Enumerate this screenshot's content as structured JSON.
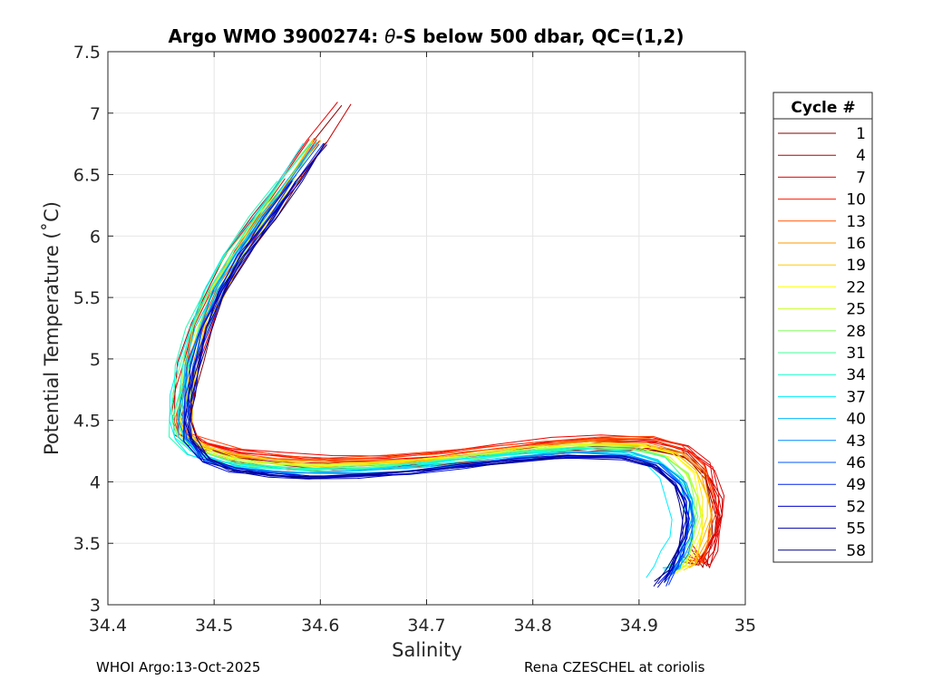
{
  "chart_data": {
    "type": "line",
    "title_prefix": "Argo WMO 3900274: ",
    "title_theta": "θ",
    "title_suffix": "-S below 500 dbar,  QC=(1,2)",
    "xlabel": "Salinity",
    "ylabel": "Potential Temperature (˚C)",
    "xlim": [
      34.4,
      35.0
    ],
    "ylim": [
      3.0,
      7.5
    ],
    "xticks": [
      34.4,
      34.5,
      34.6,
      34.7,
      34.8,
      34.9,
      35.0
    ],
    "xtick_labels": [
      "34.4",
      "34.5",
      "34.6",
      "34.7",
      "34.8",
      "34.9",
      "35"
    ],
    "yticks": [
      3.0,
      3.5,
      4.0,
      4.5,
      5.0,
      5.5,
      6.0,
      6.5,
      7.0,
      7.5
    ],
    "ytick_labels": [
      "3",
      "3.5",
      "4",
      "4.5",
      "5",
      "5.5",
      "6",
      "6.5",
      "7",
      "7.5"
    ],
    "grid": true,
    "legend_title": "Cycle #",
    "legend_position": "right, outside",
    "legend": [
      {
        "label": "1",
        "color": "#800000"
      },
      {
        "label": "4",
        "color": "#b40000"
      },
      {
        "label": "7",
        "color": "#e60000"
      },
      {
        "label": "10",
        "color": "#ff1a00"
      },
      {
        "label": "13",
        "color": "#ff5500"
      },
      {
        "label": "16",
        "color": "#ff9900"
      },
      {
        "label": "19",
        "color": "#ffcc00"
      },
      {
        "label": "22",
        "color": "#ffff00"
      },
      {
        "label": "25",
        "color": "#ccff33"
      },
      {
        "label": "28",
        "color": "#88ff66"
      },
      {
        "label": "31",
        "color": "#44ff99"
      },
      {
        "label": "34",
        "color": "#11ffcc"
      },
      {
        "label": "37",
        "color": "#00eeff"
      },
      {
        "label": "40",
        "color": "#00bbff"
      },
      {
        "label": "43",
        "color": "#0088ff"
      },
      {
        "label": "46",
        "color": "#0055ff"
      },
      {
        "label": "49",
        "color": "#0022ee"
      },
      {
        "label": "52",
        "color": "#0000cc"
      },
      {
        "label": "55",
        "color": "#0000aa"
      },
      {
        "label": "58",
        "color": "#000088"
      }
    ],
    "base_profile": {
      "salinity": [
        34.625,
        34.6,
        34.575,
        34.55,
        34.525,
        34.505,
        34.49,
        34.48,
        34.475,
        34.472,
        34.475,
        34.49,
        34.52,
        34.56,
        34.6,
        34.65,
        34.7,
        34.75,
        34.8,
        34.85,
        34.9,
        34.93,
        34.95,
        34.958,
        34.96,
        34.957,
        34.952,
        34.946
      ],
      "theta": [
        7.05,
        6.75,
        6.45,
        6.15,
        5.85,
        5.55,
        5.25,
        4.95,
        4.7,
        4.5,
        4.35,
        4.2,
        4.12,
        4.08,
        4.06,
        4.07,
        4.1,
        4.15,
        4.2,
        4.23,
        4.22,
        4.15,
        4.0,
        3.85,
        3.7,
        3.55,
        3.42,
        3.3
      ]
    },
    "profiles": [
      {
        "cycle": 1,
        "color": "#800000",
        "ds": 0.008,
        "dt": 0.05,
        "ds_lower": 0.01,
        "t_end": 3.4
      },
      {
        "cycle": 2,
        "color": "#8c0000",
        "ds": -0.004,
        "dt": 0.07,
        "ds_lower": 0.012,
        "t_end": 3.35
      },
      {
        "cycle": 3,
        "color": "#990000",
        "ds": 0.002,
        "dt": 0.03,
        "ds_lower": 0.014,
        "t_end": 3.45
      },
      {
        "cycle": 4,
        "color": "#b40000",
        "ds": -0.012,
        "dt": 0.09,
        "ds_lower": 0.016,
        "t_end": 3.38
      },
      {
        "cycle": 5,
        "color": "#c80000",
        "ds": 0.004,
        "dt": 0.04,
        "ds_lower": 0.018,
        "t_end": 3.42
      },
      {
        "cycle": 6,
        "color": "#d70000",
        "ds": -0.006,
        "dt": 0.1,
        "ds_lower": 0.02,
        "t_end": 3.36
      },
      {
        "cycle": 7,
        "color": "#e60000",
        "ds": 0.0,
        "dt": 0.12,
        "ds_lower": 0.017,
        "t_end": 3.5
      },
      {
        "cycle": 8,
        "color": "#f00000",
        "ds": -0.01,
        "dt": 0.15,
        "ds_lower": 0.015,
        "t_end": 3.4
      },
      {
        "cycle": 9,
        "color": "#ff0000",
        "ds": 0.006,
        "dt": 0.11,
        "ds_lower": 0.013,
        "t_end": 3.37
      },
      {
        "cycle": 10,
        "color": "#ff1a00",
        "ds": -0.003,
        "dt": 0.13,
        "ds_lower": 0.014,
        "t_end": 3.44
      },
      {
        "cycle": 12,
        "color": "#ff3c00",
        "ds": 0.003,
        "dt": 0.14,
        "ds_lower": 0.012,
        "t_end": 3.39
      },
      {
        "cycle": 13,
        "color": "#ff5500",
        "ds": -0.007,
        "dt": 0.12,
        "ds_lower": 0.01,
        "t_end": 3.43
      },
      {
        "cycle": 15,
        "color": "#ff7700",
        "ds": 0.001,
        "dt": 0.1,
        "ds_lower": 0.009,
        "t_end": 3.35
      },
      {
        "cycle": 16,
        "color": "#ff9900",
        "ds": -0.005,
        "dt": 0.09,
        "ds_lower": 0.008,
        "t_end": 3.4
      },
      {
        "cycle": 18,
        "color": "#ffb400",
        "ds": 0.005,
        "dt": 0.08,
        "ds_lower": 0.006,
        "t_end": 3.3
      },
      {
        "cycle": 19,
        "color": "#ffcc00",
        "ds": -0.002,
        "dt": 0.09,
        "ds_lower": 0.004,
        "t_end": 3.28
      },
      {
        "cycle": 21,
        "color": "#ffe600",
        "ds": 0.003,
        "dt": 0.07,
        "ds_lower": 0.002,
        "t_end": 3.32
      },
      {
        "cycle": 22,
        "color": "#ffff00",
        "ds": -0.004,
        "dt": 0.08,
        "ds_lower": 0.0,
        "t_end": 3.25
      },
      {
        "cycle": 24,
        "color": "#e6ff1a",
        "ds": 0.002,
        "dt": 0.06,
        "ds_lower": -0.002,
        "t_end": 3.3
      },
      {
        "cycle": 25,
        "color": "#ccff33",
        "ds": -0.006,
        "dt": 0.07,
        "ds_lower": -0.004,
        "t_end": 3.27
      },
      {
        "cycle": 27,
        "color": "#aaff4d",
        "ds": 0.001,
        "dt": 0.06,
        "ds_lower": -0.005,
        "t_end": 3.3
      },
      {
        "cycle": 28,
        "color": "#88ff66",
        "ds": -0.008,
        "dt": 0.05,
        "ds_lower": -0.006,
        "t_end": 3.33
      },
      {
        "cycle": 30,
        "color": "#66ff80",
        "ds": -0.012,
        "dt": 0.04,
        "ds_lower": -0.008,
        "t_end": 3.28
      },
      {
        "cycle": 31,
        "color": "#44ff99",
        "ds": -0.003,
        "dt": 0.05,
        "ds_lower": -0.007,
        "t_end": 3.31
      },
      {
        "cycle": 33,
        "color": "#22ffb3",
        "ds": -0.015,
        "dt": 0.03,
        "ds_lower": -0.01,
        "t_end": 3.26
      },
      {
        "cycle": 34,
        "color": "#11ffcc",
        "ds": -0.01,
        "dt": 0.04,
        "ds_lower": -0.012,
        "t_end": 3.3
      },
      {
        "cycle": 36,
        "color": "#00ffe6",
        "ds": -0.005,
        "dt": 0.03,
        "ds_lower": -0.014,
        "t_end": 3.28
      },
      {
        "cycle": 37,
        "color": "#00eeff",
        "ds": -0.014,
        "dt": 0.02,
        "ds_lower": -0.03,
        "t_end": 3.22
      },
      {
        "cycle": 39,
        "color": "#00d4ff",
        "ds": -0.002,
        "dt": 0.02,
        "ds_lower": -0.012,
        "t_end": 3.3
      },
      {
        "cycle": 40,
        "color": "#00bbff",
        "ds": -0.006,
        "dt": 0.01,
        "ds_lower": -0.01,
        "t_end": 3.27
      },
      {
        "cycle": 42,
        "color": "#00a0ff",
        "ds": 0.0,
        "dt": 0.0,
        "ds_lower": -0.008,
        "t_end": 3.25
      },
      {
        "cycle": 43,
        "color": "#0088ff",
        "ds": -0.004,
        "dt": 0.0,
        "ds_lower": -0.009,
        "t_end": 3.22
      },
      {
        "cycle": 45,
        "color": "#006eff",
        "ds": 0.002,
        "dt": -0.01,
        "ds_lower": -0.01,
        "t_end": 3.2
      },
      {
        "cycle": 46,
        "color": "#0055ff",
        "ds": -0.003,
        "dt": -0.01,
        "ds_lower": -0.011,
        "t_end": 3.18
      },
      {
        "cycle": 48,
        "color": "#0033ff",
        "ds": 0.001,
        "dt": -0.02,
        "ds_lower": -0.012,
        "t_end": 3.16
      },
      {
        "cycle": 49,
        "color": "#0022ee",
        "ds": 0.004,
        "dt": -0.02,
        "ds_lower": -0.013,
        "t_end": 3.15
      },
      {
        "cycle": 51,
        "color": "#0011dd",
        "ds": 0.0,
        "dt": -0.03,
        "ds_lower": -0.014,
        "t_end": 3.17
      },
      {
        "cycle": 52,
        "color": "#0000cc",
        "ds": 0.003,
        "dt": -0.02,
        "ds_lower": -0.015,
        "t_end": 3.14
      },
      {
        "cycle": 54,
        "color": "#0000bb",
        "ds": -0.001,
        "dt": -0.03,
        "ds_lower": -0.016,
        "t_end": 3.2
      },
      {
        "cycle": 55,
        "color": "#0000aa",
        "ds": 0.005,
        "dt": -0.02,
        "ds_lower": -0.017,
        "t_end": 3.18
      },
      {
        "cycle": 57,
        "color": "#000099",
        "ds": 0.002,
        "dt": -0.03,
        "ds_lower": -0.018,
        "t_end": 3.15
      },
      {
        "cycle": 58,
        "color": "#000088",
        "ds": 0.006,
        "dt": -0.02,
        "ds_lower": -0.016,
        "t_end": 3.19
      }
    ]
  },
  "footer": {
    "left": "WHOI Argo:13-Oct-2025",
    "right": "Rena CZESCHEL at coriolis"
  }
}
